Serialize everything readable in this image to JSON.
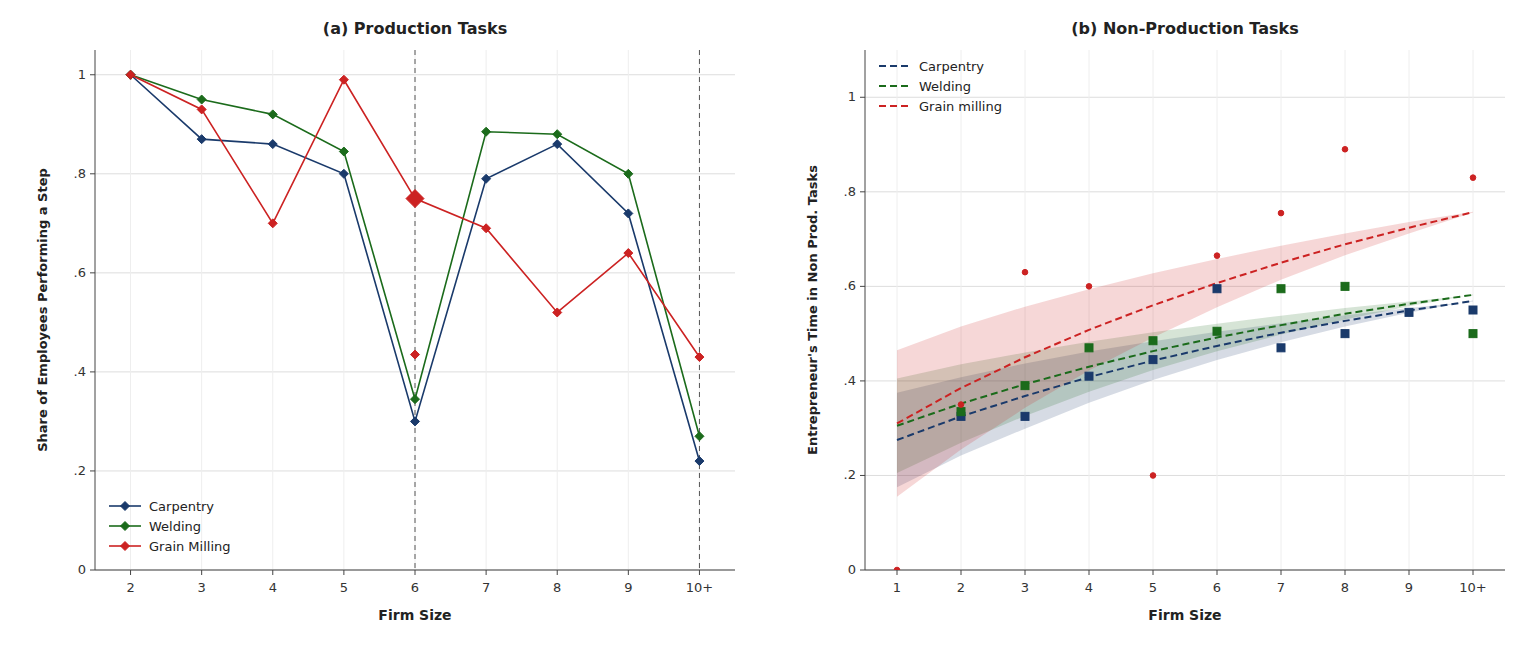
{
  "chart_data": [
    {
      "type": "line",
      "title": "(a) Production Tasks",
      "x_label": "Firm Size",
      "y_label": "Share of Employees Performing a Step",
      "categories": [
        "2",
        "3",
        "4",
        "5",
        "6",
        "7",
        "8",
        "9",
        "10+"
      ],
      "series": [
        {
          "name": "Carpentry",
          "color": "#1A3A6B",
          "type": "line",
          "marker": "diamond",
          "line_style": "solid",
          "values": [
            1.0,
            0.87,
            0.86,
            0.8,
            0.3,
            0.79,
            0.86,
            0.72,
            0.22
          ]
        },
        {
          "name": "Welding",
          "color": "#1B6B1B",
          "type": "line",
          "marker": "diamond",
          "line_style": "solid",
          "values": [
            1.0,
            0.95,
            0.92,
            0.845,
            0.345,
            0.885,
            0.88,
            0.8,
            0.27
          ]
        },
        {
          "name": "Grain Milling",
          "color": "#CC2222",
          "type": "line",
          "marker": "diamond",
          "line_style": "solid",
          "values": [
            1.0,
            0.93,
            0.7,
            0.99,
            0.75,
            0.69,
            0.52,
            0.64,
            0.43
          ]
        },
        {
          "color": "#CC2222",
          "type": "scatter",
          "marker": "large-diamond",
          "values": [
            null,
            null,
            null,
            null,
            0.75,
            null,
            null,
            null,
            null
          ]
        },
        {
          "color": "#CC2222",
          "type": "scatter",
          "marker": "diamond",
          "values": [
            null,
            null,
            null,
            null,
            0.435,
            null,
            null,
            null,
            null
          ]
        }
      ],
      "vlines": [
        "6",
        "10+"
      ],
      "ylim": [
        0,
        1.05
      ],
      "yticks": [
        0,
        {
          "value": 0.2,
          "label": ".2"
        },
        {
          "value": 0.4,
          "label": ".4"
        },
        {
          "value": 0.6,
          "label": ".6"
        },
        {
          "value": 0.8,
          "label": ".8"
        },
        1.0
      ],
      "grid": true,
      "legend": "lower left"
    },
    {
      "type": "line",
      "title": "(b) Non-Production Tasks",
      "x_label": "Firm Size",
      "y_label": "Entrepreneur's Time in Non Prod. Tasks",
      "categories": [
        "1",
        "2",
        "3",
        "4",
        "5",
        "6",
        "7",
        "8",
        "9",
        "10+"
      ],
      "series": [
        {
          "name": "Carpentry",
          "color": "#1A3A6B",
          "type": "line",
          "line_style": "dashed",
          "values": [
            0.275,
            0.325,
            0.368,
            0.408,
            0.443,
            0.474,
            0.502,
            0.527,
            0.549,
            0.569
          ],
          "ci_lower": [
            0.175,
            0.242,
            0.299,
            0.354,
            0.402,
            0.444,
            0.482,
            0.515,
            0.544,
            0.57
          ],
          "ci_upper": [
            0.375,
            0.408,
            0.437,
            0.462,
            0.484,
            0.504,
            0.522,
            0.539,
            0.554,
            0.568
          ]
        },
        {
          "name": "Welding",
          "color": "#1B6B1B",
          "type": "line",
          "line_style": "dashed",
          "values": [
            0.305,
            0.352,
            0.393,
            0.43,
            0.463,
            0.492,
            0.518,
            0.542,
            0.563,
            0.582
          ],
          "ci_lower": [
            0.205,
            0.269,
            0.326,
            0.377,
            0.423,
            0.463,
            0.498,
            0.53,
            0.558,
            0.583
          ],
          "ci_upper": [
            0.405,
            0.435,
            0.46,
            0.483,
            0.503,
            0.521,
            0.538,
            0.554,
            0.568,
            0.581
          ]
        },
        {
          "name": "Grain milling",
          "color": "#CC2222",
          "type": "line",
          "line_style": "dashed",
          "values": [
            0.31,
            0.385,
            0.45,
            0.508,
            0.56,
            0.607,
            0.65,
            0.689,
            0.724,
            0.757
          ],
          "ci_lower": [
            0.155,
            0.255,
            0.343,
            0.422,
            0.492,
            0.556,
            0.614,
            0.666,
            0.712,
            0.756
          ],
          "ci_upper": [
            0.465,
            0.515,
            0.557,
            0.594,
            0.628,
            0.658,
            0.686,
            0.712,
            0.736,
            0.758
          ]
        },
        {
          "color": "#1A3A6B",
          "type": "scatter",
          "marker": "square",
          "values": [
            null,
            0.325,
            0.325,
            0.41,
            0.445,
            0.595,
            0.47,
            0.5,
            0.545,
            0.55
          ]
        },
        {
          "color": "#1B6B1B",
          "type": "scatter",
          "marker": "square",
          "values": [
            null,
            0.335,
            0.39,
            0.47,
            0.485,
            0.505,
            0.595,
            0.6,
            null,
            0.5
          ]
        },
        {
          "color": "#CC2222",
          "type": "scatter",
          "marker": "point",
          "values": [
            0.0,
            0.35,
            0.63,
            0.6,
            0.2,
            0.665,
            0.755,
            0.89,
            null,
            0.83
          ]
        }
      ],
      "ylim": [
        0,
        1.1
      ],
      "yticks": [
        0,
        {
          "value": 0.2,
          "label": ".2"
        },
        {
          "value": 0.4,
          "label": ".4"
        },
        {
          "value": 0.6,
          "label": ".6"
        },
        {
          "value": 0.8,
          "label": ".8"
        },
        1.0
      ],
      "grid": true,
      "legend": "upper left"
    }
  ]
}
